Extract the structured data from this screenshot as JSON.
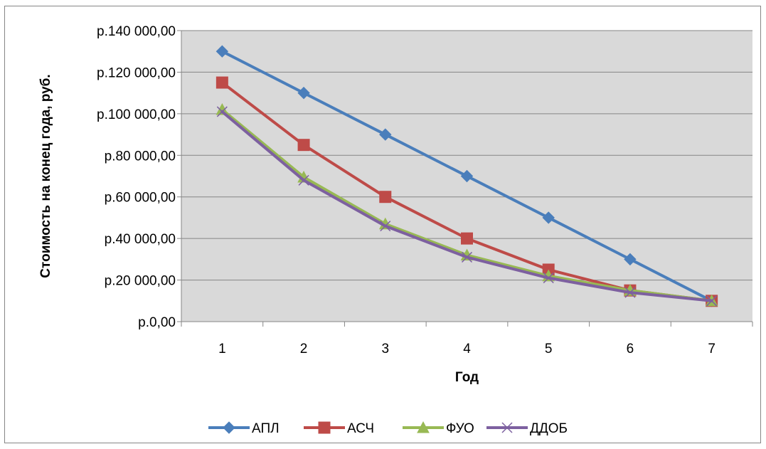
{
  "chart_data": {
    "type": "line",
    "title": "",
    "xlabel": "Год",
    "ylabel": "Стоимость на конец года, руб.",
    "categories": [
      "1",
      "2",
      "3",
      "4",
      "5",
      "6",
      "7"
    ],
    "ylim": [
      0,
      140000
    ],
    "y_ticks": [
      {
        "value": 0,
        "label": "р.0,00"
      },
      {
        "value": 20000,
        "label": "р.20 000,00"
      },
      {
        "value": 40000,
        "label": "р.40 000,00"
      },
      {
        "value": 60000,
        "label": "р.60 000,00"
      },
      {
        "value": 80000,
        "label": "р.80 000,00"
      },
      {
        "value": 100000,
        "label": "р.100 000,00"
      },
      {
        "value": 120000,
        "label": "р.120 000,00"
      },
      {
        "value": 140000,
        "label": "р.140 000,00"
      }
    ],
    "grid": true,
    "plot_background": "#d9d9d9",
    "legend_position": "bottom",
    "series": [
      {
        "name": "АПЛ",
        "color": "#4a7ebb",
        "marker": "diamond",
        "values": [
          130000,
          110000,
          90000,
          70000,
          50000,
          30000,
          10000
        ]
      },
      {
        "name": "АСЧ",
        "color": "#be4b48",
        "marker": "square",
        "values": [
          115000,
          85000,
          60000,
          40000,
          25000,
          15000,
          10000
        ]
      },
      {
        "name": "ФУО",
        "color": "#98b954",
        "marker": "triangle",
        "values": [
          102000,
          69500,
          47000,
          32000,
          22000,
          15000,
          10000
        ]
      },
      {
        "name": "ДДОБ",
        "color": "#7d60a0",
        "marker": "x",
        "values": [
          101000,
          68000,
          46000,
          31000,
          21000,
          14000,
          10000
        ]
      }
    ]
  }
}
